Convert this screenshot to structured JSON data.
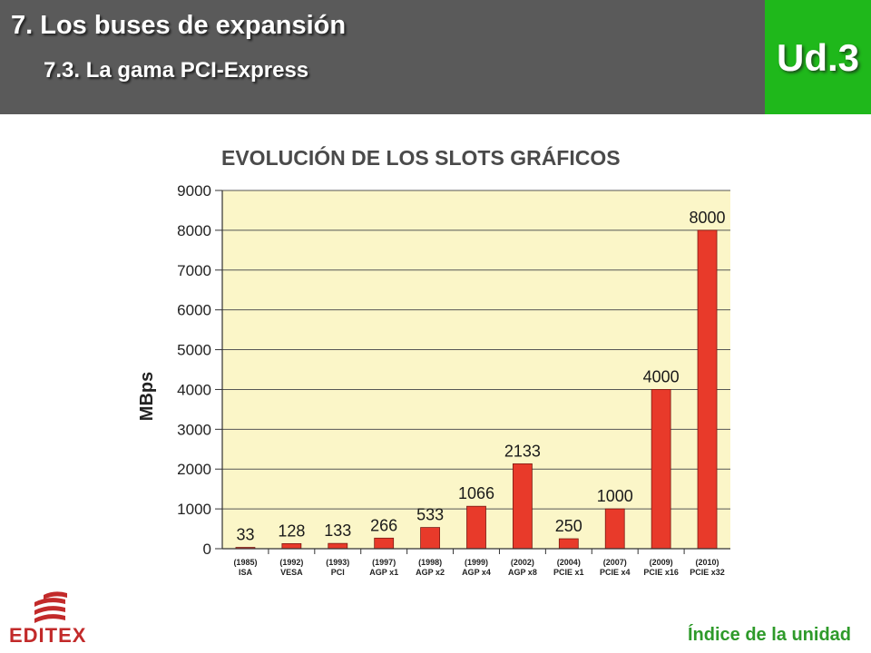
{
  "header": {
    "title": "7. Los buses de expansión",
    "subtitle": "7.3. La gama PCI-Express",
    "unit_badge": "Ud.3"
  },
  "footer": {
    "logo_text": "EDITEX",
    "index_link": "Índice de la unidad"
  },
  "colors": {
    "header_bg": "#5a5a5a",
    "badge_bg": "#1fb81b",
    "plot_bg": "#fbf6c8",
    "bar": "#e83a2a",
    "link": "#2e9a2a",
    "logo": "#c22a2a"
  },
  "chart_data": {
    "type": "bar",
    "title": "EVOLUCIÓN DE LOS SLOTS GRÁFICOS",
    "ylabel": "MBps",
    "ylim": [
      0,
      9000
    ],
    "yticks": [
      0,
      1000,
      2000,
      3000,
      4000,
      5000,
      6000,
      7000,
      8000,
      9000
    ],
    "grid": true,
    "categories": [
      {
        "year": "(1985)",
        "name": "ISA"
      },
      {
        "year": "(1992)",
        "name": "VESA"
      },
      {
        "year": "(1993)",
        "name": "PCI"
      },
      {
        "year": "(1997)",
        "name": "AGP x1"
      },
      {
        "year": "(1998)",
        "name": "AGP x2"
      },
      {
        "year": "(1999)",
        "name": "AGP x4"
      },
      {
        "year": "(2002)",
        "name": "AGP x8"
      },
      {
        "year": "(2004)",
        "name": "PCIE x1"
      },
      {
        "year": "(2007)",
        "name": "PCIE x4"
      },
      {
        "year": "(2009)",
        "name": "PCIE x16"
      },
      {
        "year": "(2010)",
        "name": "PCIE x32"
      }
    ],
    "values": [
      33,
      128,
      133,
      266,
      533,
      1066,
      2133,
      250,
      1000,
      4000,
      8000
    ]
  }
}
